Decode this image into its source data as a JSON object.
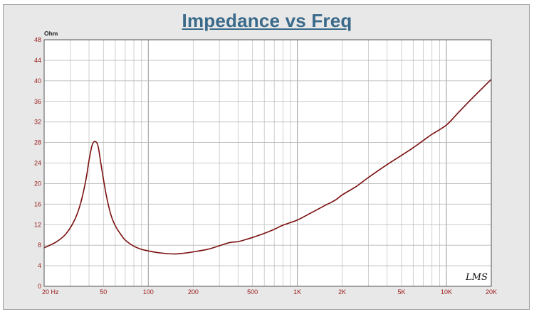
{
  "chart_data": {
    "type": "line",
    "title": "Impedance vs Freq",
    "ylabel": "Ohm",
    "xlabel": "",
    "x_scale": "log",
    "xlim": [
      20,
      20000
    ],
    "ylim": [
      0,
      48
    ],
    "grid": true,
    "yticks": [
      0,
      4,
      8,
      12,
      16,
      20,
      24,
      28,
      32,
      36,
      40,
      44,
      48
    ],
    "xticks": [
      {
        "value": 20,
        "label": "20  Hz"
      },
      {
        "value": 50,
        "label": "50"
      },
      {
        "value": 100,
        "label": "100"
      },
      {
        "value": 200,
        "label": "200"
      },
      {
        "value": 500,
        "label": "500"
      },
      {
        "value": 1000,
        "label": "1K"
      },
      {
        "value": 2000,
        "label": "2K"
      },
      {
        "value": 5000,
        "label": "5K"
      },
      {
        "value": 10000,
        "label": "10K"
      },
      {
        "value": 20000,
        "label": "20K"
      }
    ],
    "series": [
      {
        "color": "#7a0e0e",
        "x": [
          20,
          24,
          28,
          32,
          35,
          38,
          40,
          42,
          44,
          46,
          48,
          52,
          56,
          60,
          65,
          70,
          80,
          90,
          100,
          120,
          150,
          180,
          200,
          250,
          300,
          350,
          400,
          450,
          500,
          600,
          700,
          800,
          1000,
          1200,
          1500,
          1800,
          2000,
          2500,
          3000,
          4000,
          5000,
          6000,
          7000,
          8000,
          10000,
          12000,
          15000,
          20000
        ],
        "y": [
          7.5,
          8.6,
          10.2,
          12.9,
          16.0,
          20.5,
          24.5,
          27.5,
          28.2,
          27.3,
          24.0,
          18.0,
          14.0,
          11.8,
          10.2,
          9.0,
          7.8,
          7.2,
          6.9,
          6.5,
          6.3,
          6.5,
          6.7,
          7.2,
          7.9,
          8.5,
          8.7,
          9.1,
          9.5,
          10.3,
          11.1,
          11.9,
          12.9,
          14.1,
          15.6,
          16.8,
          17.8,
          19.5,
          21.2,
          23.7,
          25.5,
          27.0,
          28.4,
          29.6,
          31.4,
          33.8,
          36.7,
          40.3
        ]
      }
    ],
    "annotation": "LMS"
  }
}
